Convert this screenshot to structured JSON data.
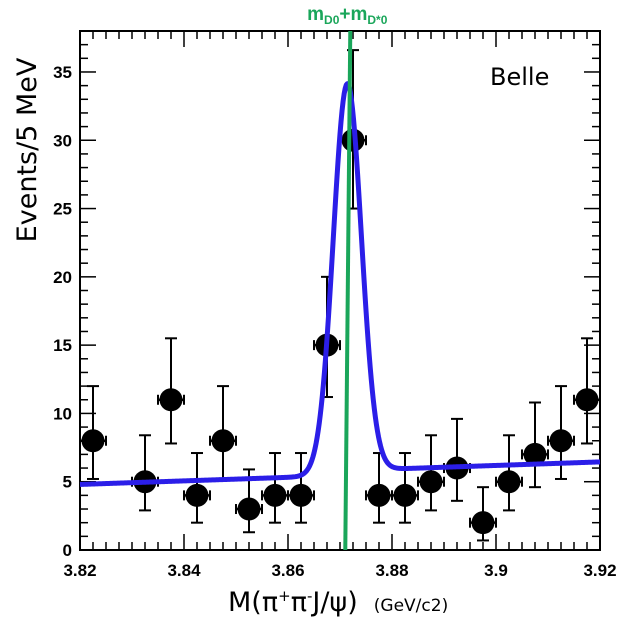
{
  "chart_data": {
    "type": "scatter",
    "title": "",
    "label": "Belle",
    "xlabel": {
      "main": "M(",
      "pi": "π",
      "plus": "+",
      "minus": "-",
      "rest": "J/ψ)",
      "unit": "(GeV/c2)"
    },
    "ylabel": "Events/5 MeV",
    "xlim": [
      3.82,
      3.92
    ],
    "ylim": [
      0,
      38
    ],
    "x_ticks": [
      {
        "value": 3.82,
        "label": "3.82"
      },
      {
        "value": 3.84,
        "label": "3.84"
      },
      {
        "value": 3.86,
        "label": "3.86"
      },
      {
        "value": 3.88,
        "label": "3.88"
      },
      {
        "value": 3.9,
        "label": "3.9"
      },
      {
        "value": 3.92,
        "label": "3.92"
      }
    ],
    "y_ticks": [
      {
        "value": 0,
        "label": "0"
      },
      {
        "value": 5,
        "label": "5"
      },
      {
        "value": 10,
        "label": "10"
      },
      {
        "value": 15,
        "label": "15"
      },
      {
        "value": 20,
        "label": "20"
      },
      {
        "value": 25,
        "label": "25"
      },
      {
        "value": 30,
        "label": "30"
      },
      {
        "value": 35,
        "label": "35"
      }
    ],
    "threshold": {
      "x": 3.8714,
      "label_m1": "m",
      "label_sub1": "D0",
      "label_plus": "+",
      "label_m2": "m",
      "label_sub2": "D*0",
      "color": "#1aa65a"
    },
    "series": [
      {
        "name": "data",
        "color": "#000000",
        "points": [
          {
            "x": 3.8225,
            "y": 8,
            "ylo": 5.2,
            "yhi": 12
          },
          {
            "x": 3.8325,
            "y": 5,
            "ylo": 2.9,
            "yhi": 8.4
          },
          {
            "x": 3.8375,
            "y": 11,
            "ylo": 7.8,
            "yhi": 15.5
          },
          {
            "x": 3.8425,
            "y": 4,
            "ylo": 2.0,
            "yhi": 7.1
          },
          {
            "x": 3.8475,
            "y": 8,
            "ylo": 5.2,
            "yhi": 12
          },
          {
            "x": 3.8525,
            "y": 3,
            "ylo": 1.3,
            "yhi": 5.9
          },
          {
            "x": 3.8575,
            "y": 4,
            "ylo": 2.0,
            "yhi": 7.1
          },
          {
            "x": 3.8625,
            "y": 4,
            "ylo": 2.0,
            "yhi": 7.1
          },
          {
            "x": 3.8675,
            "y": 15,
            "ylo": 11.2,
            "yhi": 20
          },
          {
            "x": 3.8725,
            "y": 30,
            "ylo": 25,
            "yhi": 36.6
          },
          {
            "x": 3.8775,
            "y": 4,
            "ylo": 2.0,
            "yhi": 7.1
          },
          {
            "x": 3.8825,
            "y": 4,
            "ylo": 2.0,
            "yhi": 7.1
          },
          {
            "x": 3.8875,
            "y": 5,
            "ylo": 2.9,
            "yhi": 8.4
          },
          {
            "x": 3.8925,
            "y": 6,
            "ylo": 3.6,
            "yhi": 9.6
          },
          {
            "x": 3.8975,
            "y": 2,
            "ylo": 0.7,
            "yhi": 4.6
          },
          {
            "x": 3.9025,
            "y": 5,
            "ylo": 2.9,
            "yhi": 8.4
          },
          {
            "x": 3.9075,
            "y": 7,
            "ylo": 4.6,
            "yhi": 10.8
          },
          {
            "x": 3.9125,
            "y": 8,
            "ylo": 5.2,
            "yhi": 12
          },
          {
            "x": 3.9175,
            "y": 11,
            "ylo": 7.8,
            "yhi": 15.5
          }
        ]
      },
      {
        "name": "fit",
        "type": "line",
        "color": "#2b1ee8",
        "background": {
          "x0": 3.82,
          "y0": 4.8,
          "x1": 3.92,
          "y1": 6.1
        },
        "peak": {
          "mean": 3.8714,
          "sigma": 0.0027,
          "amplitude": 28.5,
          "step": 0.35
        }
      }
    ]
  }
}
